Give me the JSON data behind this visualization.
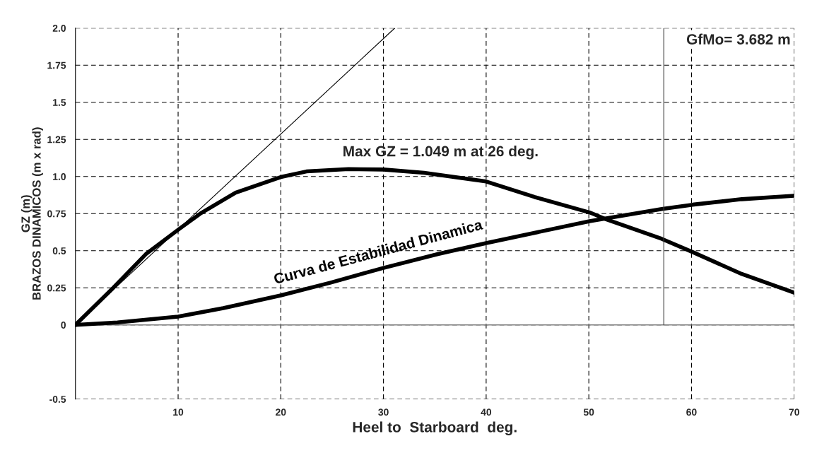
{
  "chart_data": {
    "type": "line",
    "xlabel": "Heel to  Starboard  deg.",
    "ylabel": "GZ (m)\nBRAZOS DINAMICOS (m x rad)",
    "xlim": [
      0,
      70
    ],
    "xticks": [
      10,
      20,
      30,
      40,
      50,
      60,
      70
    ],
    "ylim": [
      -0.5,
      2.0
    ],
    "yticks": [
      -0.5,
      0,
      0.25,
      0.5,
      0.75,
      {
        "value": 1.0,
        "label": "1.0"
      },
      1.25,
      1.5,
      1.75,
      {
        "value": 2.0,
        "label": "2.0"
      }
    ],
    "grid": true,
    "line_style": "solid",
    "marker": "none",
    "series": [
      {
        "color": "#000000",
        "x": [
          0,
          3.65,
          6.86,
          10.0,
          12.14,
          15.6,
          20.0,
          22.5,
          26.6,
          30.0,
          33.95,
          40.0,
          44.7,
          50.07,
          51.6,
          57.1,
          60.1,
          64.9,
          70.0
        ],
        "values": [
          0,
          0.248,
          0.477,
          0.641,
          0.749,
          0.891,
          0.996,
          1.034,
          1.05,
          1.047,
          1.025,
          0.966,
          0.862,
          0.758,
          0.714,
          0.58,
          0.491,
          0.343,
          0.217
        ]
      },
      {
        "name": "Curva de Estabilidad Dinamica",
        "color": "#000000",
        "x": [
          0,
          4.1,
          10.0,
          14.4,
          20.0,
          24.8,
          30.0,
          35.3,
          40.0,
          50.07,
          57.1,
          60.1,
          64.9,
          70.0
        ],
        "values": [
          0,
          0.017,
          0.056,
          0.113,
          0.199,
          0.284,
          0.384,
          0.477,
          0.551,
          0.699,
          0.781,
          0.81,
          0.847,
          0.87
        ]
      },
      {
        "color": "#000000",
        "x": [
          0,
          31.1
        ],
        "values": [
          0,
          2.0
        ]
      },
      {
        "color": "#404040",
        "x": [
          57.3,
          57.3
        ],
        "values": [
          0,
          2.0
        ]
      }
    ],
    "ref_lines": [
      {
        "axis": "y",
        "value": 0,
        "color": "#808080",
        "line_style": "solid"
      }
    ],
    "annotations": [
      {
        "text": "Max GZ = 1.049 m at 26 deg.",
        "x": 26,
        "y": 1.049
      },
      "GfMo= 3.682 m"
    ]
  }
}
